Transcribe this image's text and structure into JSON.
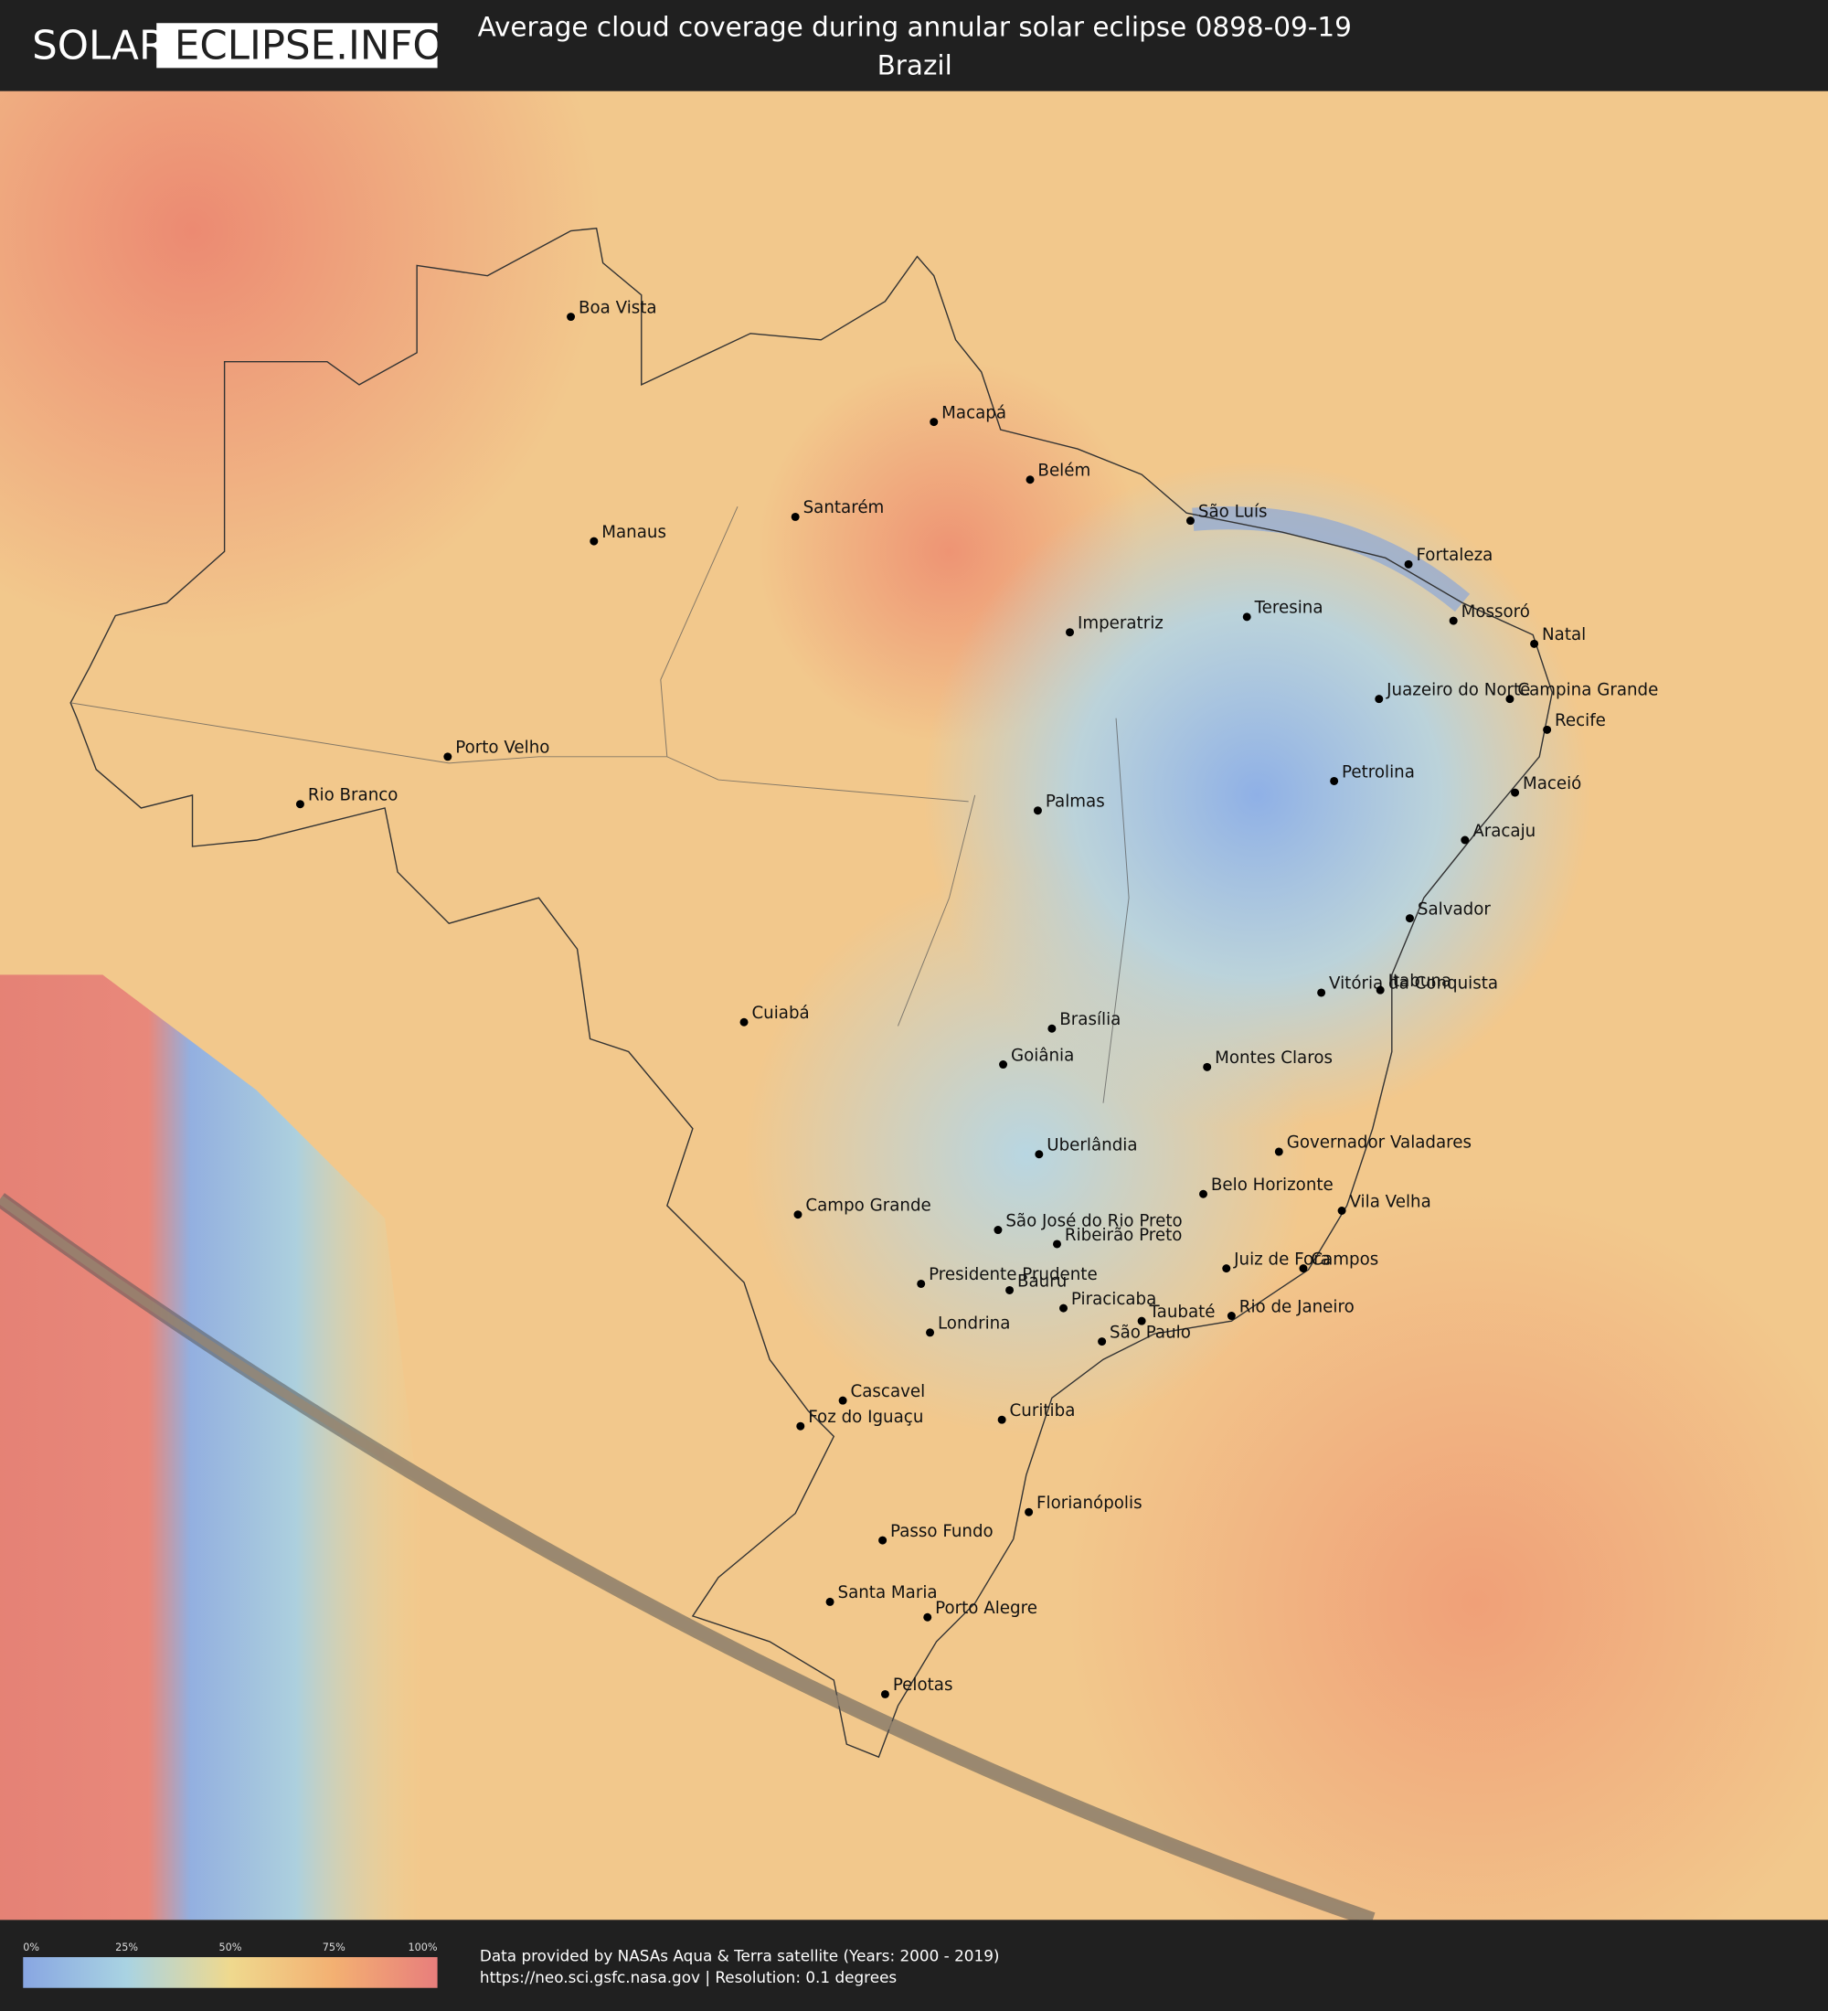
{
  "header": {
    "logo_left": "SOLAR-",
    "logo_right": "ECLIPSE.INFO",
    "title": "Average cloud coverage during annular solar eclipse 0898-09-19",
    "subtitle": "Brazil"
  },
  "cities": [
    "Boa Vista",
    "Macapá",
    "Belém",
    "Santarém",
    "São Luís",
    "Manaus",
    "Fortaleza",
    "Teresina",
    "Mossoró",
    "Imperatriz",
    "Natal",
    "Juazeiro do Norte",
    "Campina Grande",
    "Recife",
    "Porto Velho",
    "Petrolina",
    "Maceió",
    "Rio Branco",
    "Palmas",
    "Aracaju",
    "Salvador",
    "Vitória da Conquista",
    "Itabuna",
    "Cuiabá",
    "Brasília",
    "Goiânia",
    "Montes Claros",
    "Uberlândia",
    "Governador Valadares",
    "Belo Horizonte",
    "Vila Velha",
    "Campo Grande",
    "São José do Rio Preto",
    "Ribeirão Preto",
    "Juiz de Fora",
    "Campos",
    "Presidente Prudente",
    "Bauru",
    "Piracicaba",
    "Taubaté",
    "Rio de Janeiro",
    "Londrina",
    "São Paulo",
    "Cascavel",
    "Foz do Iguaçu",
    "Curitiba",
    "Florianópolis",
    "Passo Fundo",
    "Santa Maria",
    "Porto Alegre",
    "Pelotas"
  ],
  "legend": {
    "ticks": [
      "0%",
      "25%",
      "50%",
      "75%",
      "100%"
    ]
  },
  "footer": {
    "source": "Data provided by NASAs Aqua & Terra satellite (Years: 2000 - 2019)",
    "url": "https://neo.sci.gsfc.nasa.gov | Resolution: 0.1 degrees"
  }
}
